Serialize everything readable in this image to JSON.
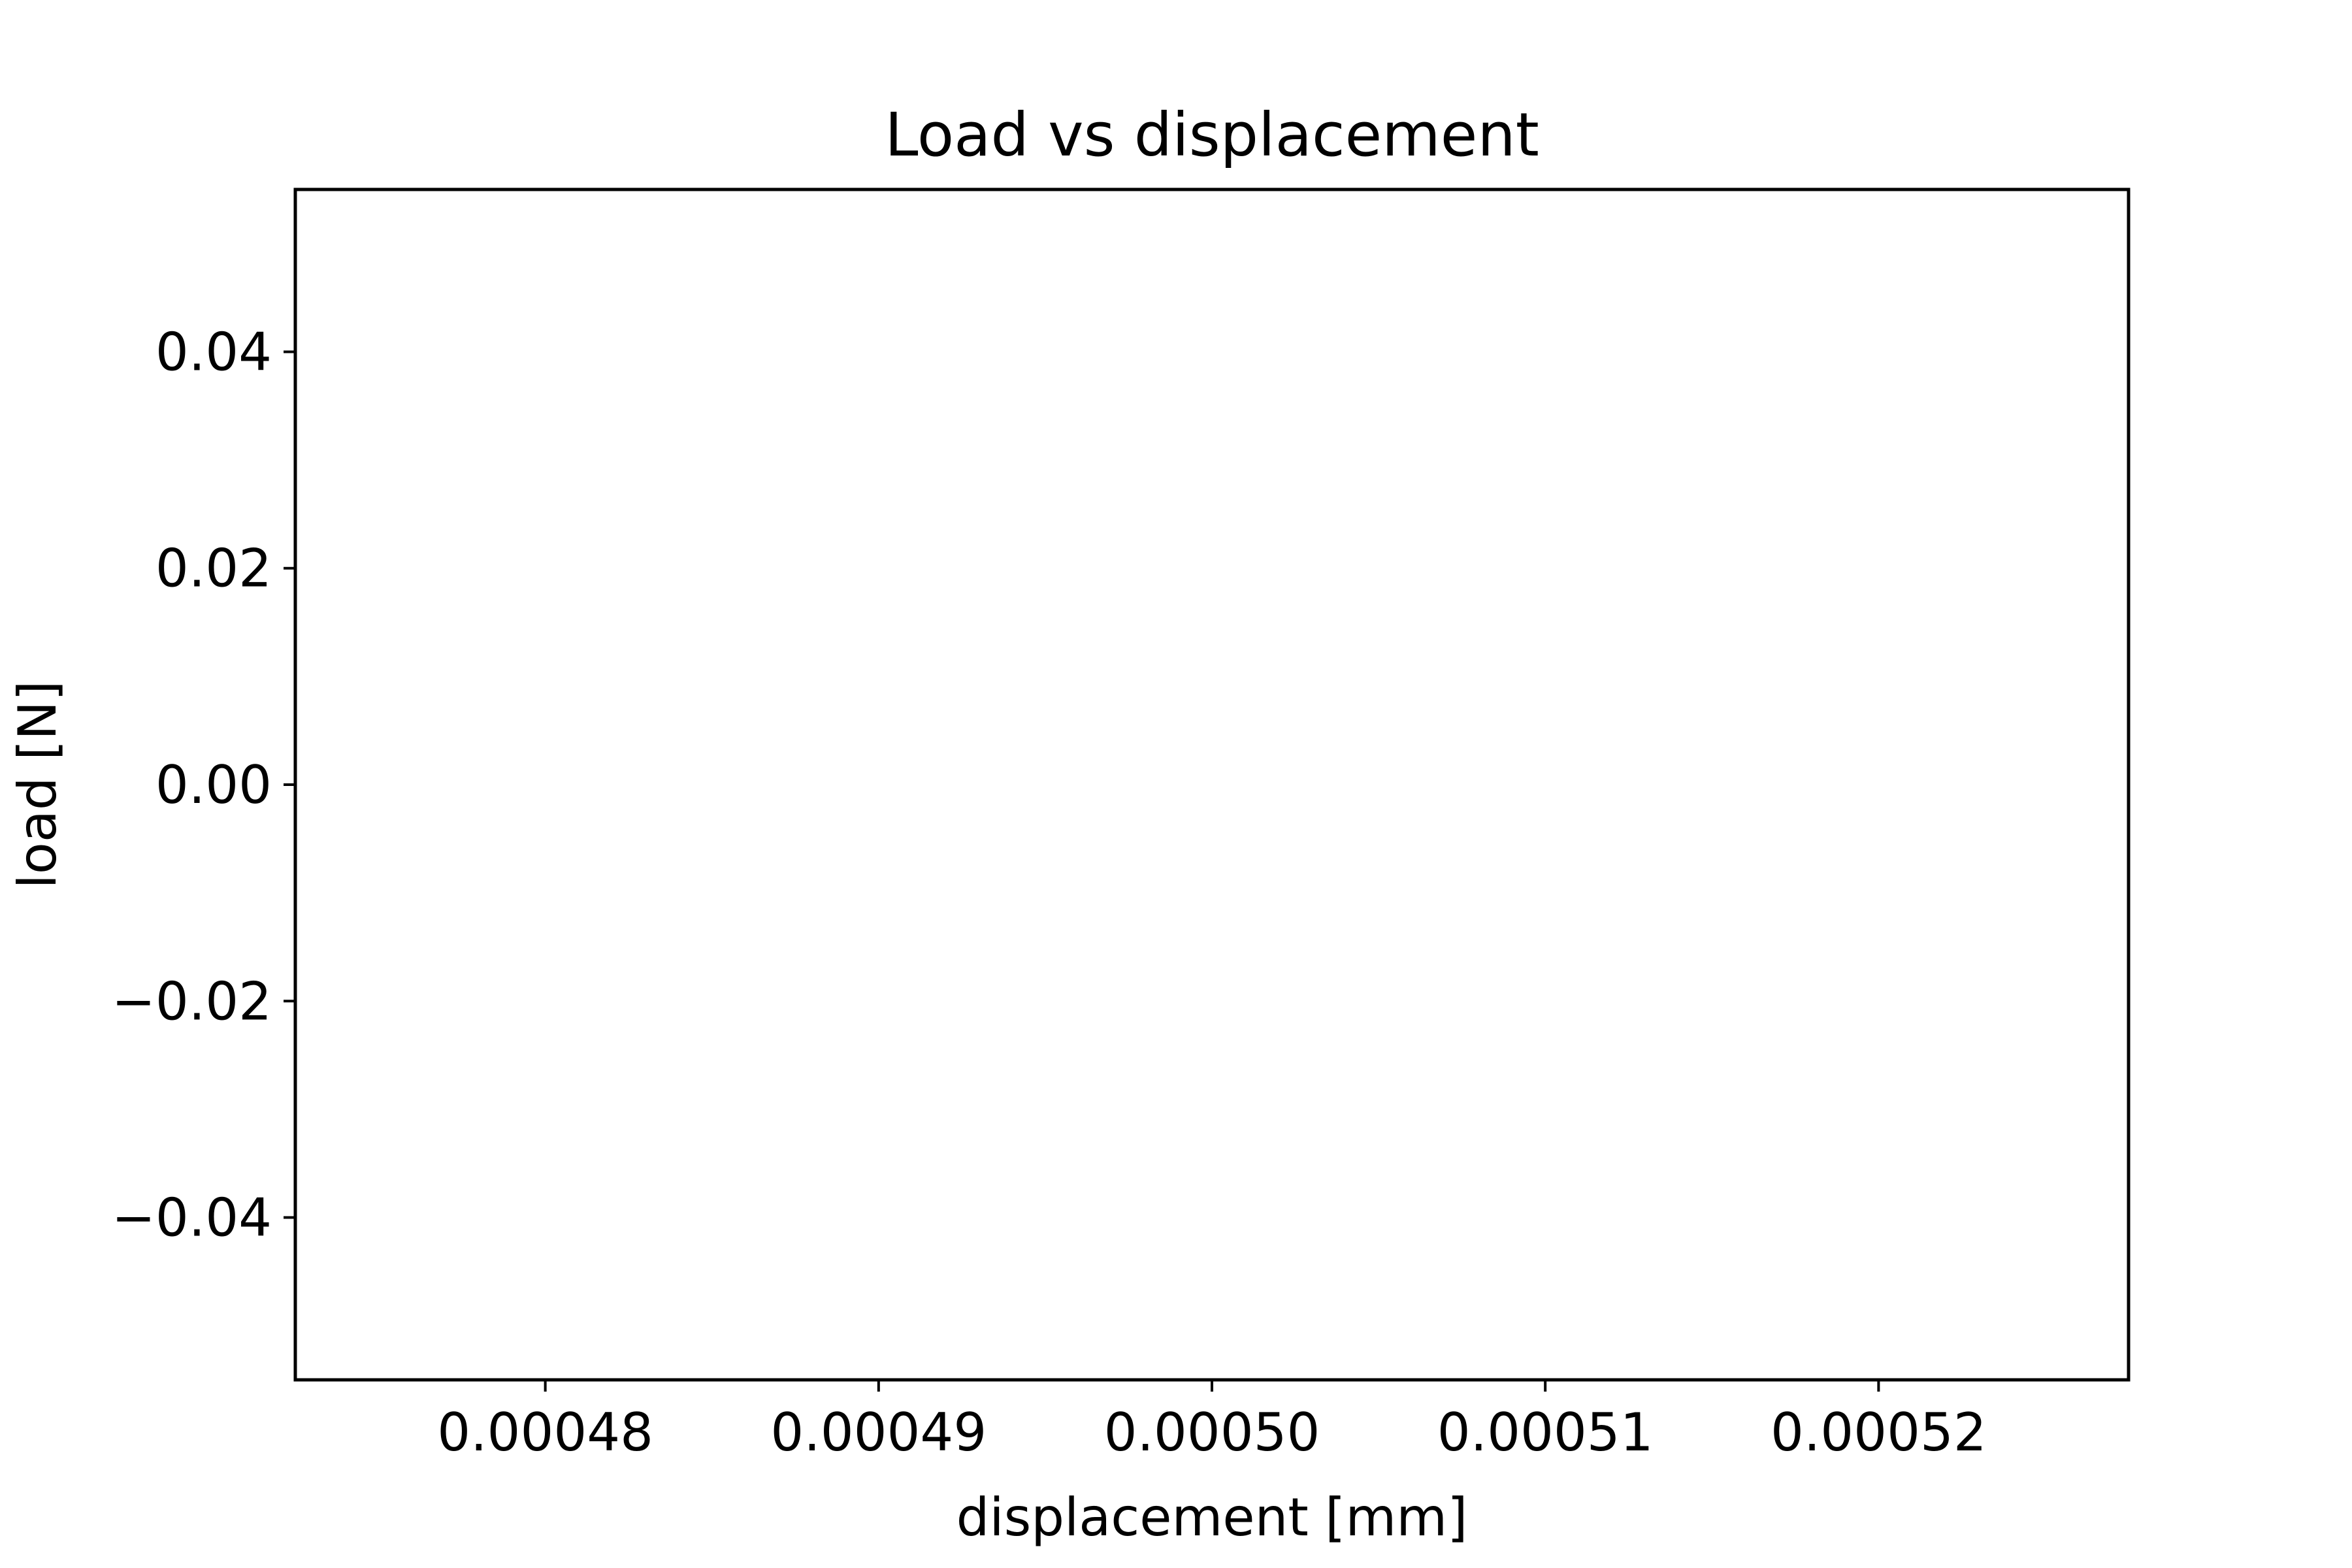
{
  "chart_data": {
    "type": "scatter",
    "title": "Load vs displacement",
    "xlabel": "displacement [mm]",
    "ylabel": "load [N]",
    "xlim": [
      0.0004725,
      0.0005275
    ],
    "ylim": [
      -0.055,
      0.055
    ],
    "x_ticks": [
      {
        "value": 0.00048,
        "label": "0.00048"
      },
      {
        "value": 0.00049,
        "label": "0.00049"
      },
      {
        "value": 0.0005,
        "label": "0.00050"
      },
      {
        "value": 0.00051,
        "label": "0.00051"
      },
      {
        "value": 0.00052,
        "label": "0.00052"
      }
    ],
    "y_ticks": [
      {
        "value": 0.04,
        "label": "0.04"
      },
      {
        "value": 0.02,
        "label": "0.02"
      },
      {
        "value": 0.0,
        "label": "0.00"
      },
      {
        "value": -0.02,
        "label": "−0.02"
      },
      {
        "value": -0.04,
        "label": "−0.04"
      }
    ],
    "series": [],
    "grid": false
  }
}
